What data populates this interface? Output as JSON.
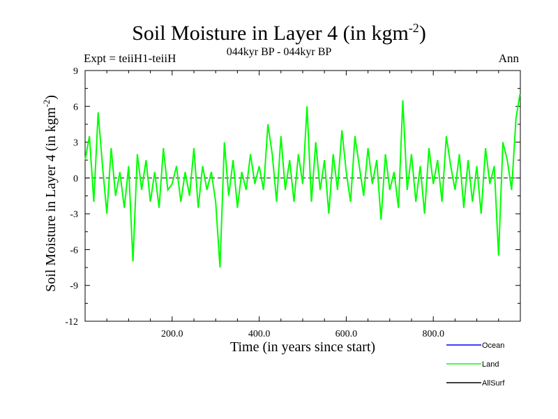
{
  "chart_data": {
    "type": "line",
    "title_main": "Soil Moisture in Layer 4 (in kgm",
    "title_sup": "-2",
    "title_close": ")",
    "subtitle": "044kyr BP - 044kyr BP",
    "expt_label": "Expt = teiiH1-teiiH",
    "season": "Ann",
    "xlabel": "Time (in years since start)",
    "ylabel_main": "Soil Moisture in Layer 4 (in kgm",
    "ylabel_sup": "-2",
    "ylabel_close": ")",
    "xlim": [
      0,
      1000
    ],
    "ylim": [
      -12,
      9
    ],
    "x_ticks": [
      200,
      400,
      600,
      800
    ],
    "x_tick_labels": [
      "200.0",
      "400.0",
      "600.0",
      "800.0"
    ],
    "y_ticks": [
      -12,
      -9,
      -6,
      -3,
      0,
      3,
      6,
      9
    ],
    "y_tick_labels": [
      "-12",
      "-9",
      "-6",
      "-3",
      "0",
      "3",
      "6",
      "9"
    ],
    "zero_line": "dashed",
    "legend_position": "bottom-right",
    "series": [
      {
        "name": "Ocean",
        "color": "#0000ff",
        "x": [],
        "values": []
      },
      {
        "name": "Land",
        "color": "#00ff00",
        "x": [
          0,
          10,
          20,
          30,
          40,
          50,
          60,
          70,
          80,
          90,
          100,
          110,
          120,
          130,
          140,
          150,
          160,
          170,
          180,
          190,
          200,
          210,
          220,
          230,
          240,
          250,
          260,
          270,
          280,
          290,
          300,
          310,
          320,
          330,
          340,
          350,
          360,
          370,
          380,
          390,
          400,
          410,
          420,
          430,
          440,
          450,
          460,
          470,
          480,
          490,
          500,
          510,
          520,
          530,
          540,
          550,
          560,
          570,
          580,
          590,
          600,
          610,
          620,
          630,
          640,
          650,
          660,
          670,
          680,
          690,
          700,
          710,
          720,
          730,
          740,
          750,
          760,
          770,
          780,
          790,
          800,
          810,
          820,
          830,
          840,
          850,
          860,
          870,
          880,
          890,
          900,
          910,
          920,
          930,
          940,
          950,
          960,
          970,
          980,
          990,
          999
        ],
        "values": [
          1.5,
          3.5,
          -2.0,
          5.5,
          1.0,
          -3.0,
          2.5,
          -1.5,
          0.5,
          -2.5,
          1.0,
          -7.0,
          2.0,
          -1.0,
          1.5,
          -2.0,
          0.5,
          -2.5,
          2.5,
          -1.0,
          -0.5,
          1.0,
          -2.0,
          0.5,
          -1.5,
          2.5,
          -2.5,
          1.0,
          -1.0,
          0.5,
          -2.0,
          -7.5,
          3.0,
          -1.5,
          1.5,
          -2.5,
          0.5,
          -1.0,
          2.0,
          -0.5,
          1.0,
          -1.0,
          4.5,
          2.0,
          -2.0,
          3.5,
          -1.0,
          1.5,
          -2.0,
          2.0,
          -0.5,
          6.0,
          -2.0,
          3.0,
          -1.0,
          1.5,
          -3.0,
          2.0,
          -1.0,
          4.0,
          0.5,
          -2.0,
          3.5,
          1.0,
          -1.5,
          2.5,
          -0.5,
          1.5,
          -3.5,
          2.0,
          -1.0,
          0.5,
          -2.5,
          6.5,
          -1.0,
          2.0,
          -2.0,
          1.0,
          -3.0,
          2.5,
          -0.5,
          1.5,
          -2.0,
          3.5,
          1.0,
          -1.0,
          2.0,
          -2.5,
          1.5,
          -2.0,
          1.0,
          -3.0,
          2.5,
          -0.5,
          1.0,
          -6.5,
          3.0,
          1.5,
          -1.0,
          5.0,
          7.0
        ]
      },
      {
        "name": "AllSurf",
        "color": "#000000",
        "x": [],
        "values": []
      }
    ]
  }
}
